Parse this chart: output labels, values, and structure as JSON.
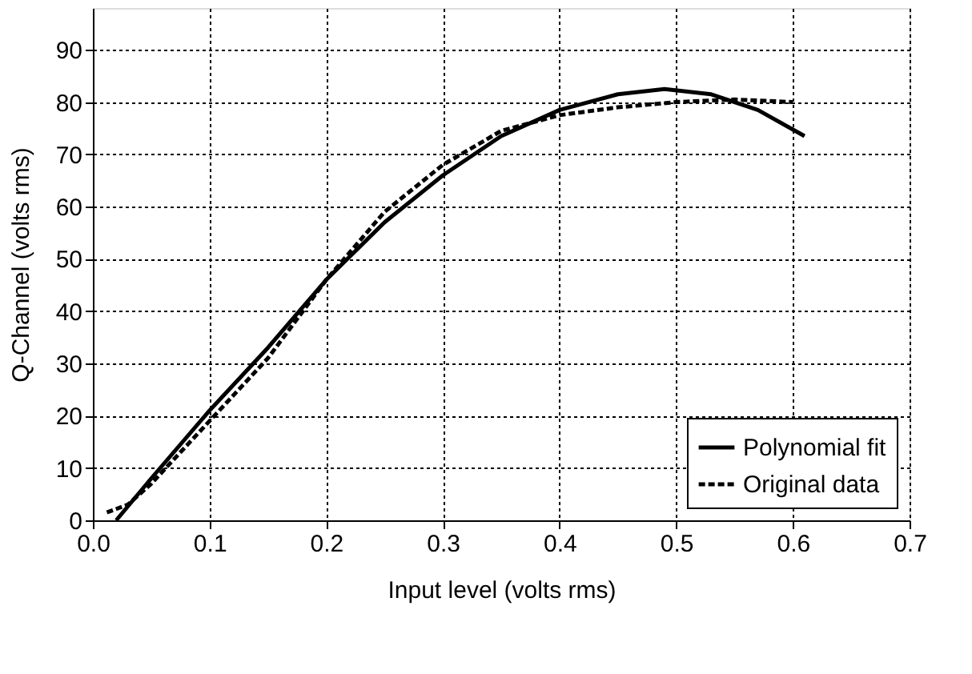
{
  "chart_data": {
    "type": "line",
    "xlabel": "Input level (volts rms)",
    "ylabel": "Q-Channel (volts rms)",
    "xlim": [
      0,
      0.7
    ],
    "ylim": [
      0,
      98
    ],
    "xticks": [
      {
        "value": 0,
        "label": "0.0"
      },
      0.1,
      0.2,
      0.3,
      0.4,
      0.5,
      0.6,
      0.7
    ],
    "yticks": [
      0,
      10,
      20,
      30,
      40,
      50,
      60,
      70,
      80,
      90
    ],
    "grid": true,
    "legend": "bottom right",
    "marker": "none",
    "series": [
      {
        "name": "Polynomial fit",
        "color": "#000000",
        "line_style": "solid",
        "x": [
          0.02,
          0.05,
          0.1,
          0.15,
          0.2,
          0.25,
          0.3,
          0.35,
          0.4,
          0.45,
          0.49,
          0.53,
          0.57,
          0.61
        ],
        "values": [
          0,
          8,
          21,
          33,
          46,
          57,
          66,
          73.5,
          78.5,
          81.5,
          82.5,
          81.5,
          78.5,
          73.5
        ]
      },
      {
        "name": "Original data",
        "color": "#000000",
        "line_style": "dashed",
        "x": [
          0.012,
          0.03,
          0.05,
          0.1,
          0.15,
          0.2,
          0.25,
          0.3,
          0.35,
          0.4,
          0.45,
          0.5,
          0.55,
          0.6
        ],
        "values": [
          1.5,
          3,
          7,
          19,
          31,
          46,
          59,
          68,
          74.5,
          77.5,
          79,
          80,
          80.5,
          80
        ]
      }
    ]
  }
}
